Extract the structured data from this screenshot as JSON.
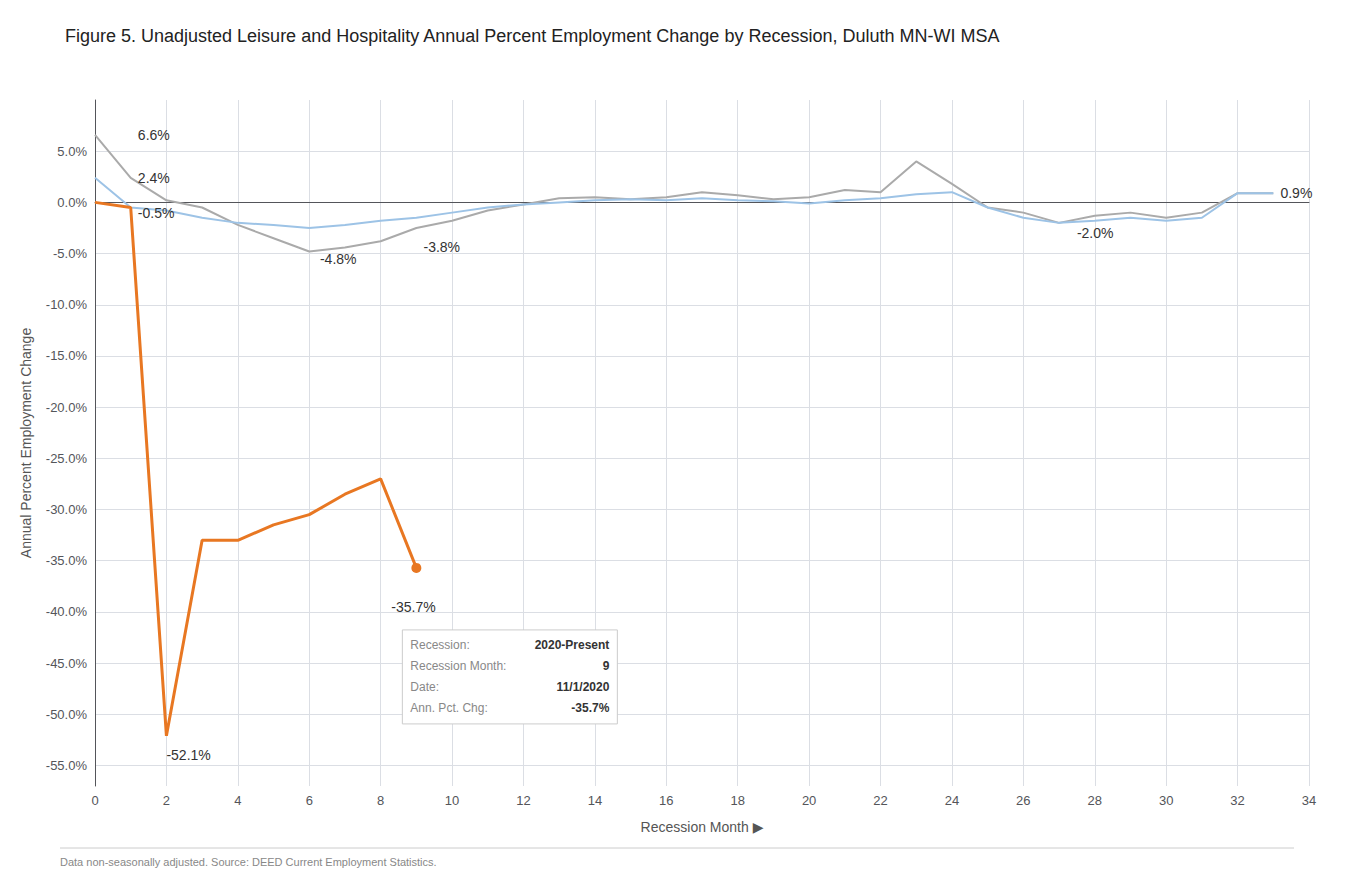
{
  "chart_data": {
    "type": "line",
    "title": "Figure 5. Unadjusted Leisure and Hospitality Annual Percent Employment Change by Recession, Duluth MN-WI MSA",
    "xlabel": "Recession Month ▶",
    "ylabel": "Annual Percent Employment Change",
    "footnote": "Data non-seasonally adjusted. Source: DEED Current Employment Statistics.",
    "grid": true,
    "xlim": [
      0,
      34
    ],
    "xticks": [
      0,
      2,
      4,
      6,
      8,
      10,
      12,
      14,
      16,
      18,
      20,
      22,
      24,
      26,
      28,
      30,
      32,
      34
    ],
    "ylim": [
      -0.57,
      0.1
    ],
    "yticks": [
      {
        "value": -0.55,
        "label": "-55.0%"
      },
      {
        "value": -0.5,
        "label": "-50.0%"
      },
      {
        "value": -0.45,
        "label": "-45.0%"
      },
      {
        "value": -0.4,
        "label": "-40.0%"
      },
      {
        "value": -0.35,
        "label": "-35.0%"
      },
      {
        "value": -0.3,
        "label": "-30.0%"
      },
      {
        "value": -0.25,
        "label": "-25.0%"
      },
      {
        "value": -0.2,
        "label": "-20.0%"
      },
      {
        "value": -0.15,
        "label": "-15.0%"
      },
      {
        "value": -0.1,
        "label": "-10.0%"
      },
      {
        "value": -0.05,
        "label": "-5.0%"
      },
      {
        "value": 0.0,
        "label": "0.0%"
      },
      {
        "value": 0.05,
        "label": "5.0%"
      }
    ],
    "series": [
      {
        "color": "#AAAAAA",
        "x": [
          0,
          1,
          2,
          3,
          4,
          5,
          6,
          7,
          8,
          9,
          10,
          11,
          12,
          13,
          14,
          15,
          16,
          17,
          18,
          19,
          20,
          21,
          22,
          23,
          24,
          25,
          26,
          27,
          28,
          29,
          30,
          31,
          32,
          33
        ],
        "values": [
          0.066,
          0.024,
          0.002,
          -0.005,
          -0.022,
          -0.035,
          -0.048,
          -0.044,
          -0.038,
          -0.025,
          -0.018,
          -0.008,
          -0.002,
          0.004,
          0.005,
          0.003,
          0.005,
          0.01,
          0.007,
          0.003,
          0.005,
          0.012,
          0.01,
          0.04,
          0.018,
          -0.005,
          -0.01,
          -0.02,
          -0.013,
          -0.01,
          -0.015,
          -0.01,
          0.009,
          0.009
        ]
      },
      {
        "color": "#9DC3E6",
        "x": [
          0,
          1,
          2,
          3,
          4,
          5,
          6,
          7,
          8,
          9,
          10,
          11,
          12,
          13,
          14,
          15,
          16,
          17,
          18,
          19,
          20,
          21,
          22,
          23,
          24,
          25,
          26,
          27,
          28,
          29,
          30,
          31,
          32,
          33
        ],
        "values": [
          0.024,
          -0.005,
          -0.008,
          -0.015,
          -0.02,
          -0.022,
          -0.025,
          -0.022,
          -0.018,
          -0.015,
          -0.01,
          -0.005,
          -0.002,
          0.0,
          0.002,
          0.003,
          0.002,
          0.004,
          0.002,
          0.001,
          -0.001,
          0.002,
          0.004,
          0.008,
          0.01,
          -0.005,
          -0.015,
          -0.02,
          -0.018,
          -0.015,
          -0.018,
          -0.015,
          0.009,
          0.009
        ]
      },
      {
        "color": "#E87722",
        "marker": "end",
        "x": [
          0,
          1,
          2,
          3,
          4,
          5,
          6,
          7,
          8,
          9
        ],
        "values": [
          0.0,
          -0.005,
          -0.521,
          -0.33,
          -0.33,
          -0.315,
          -0.305,
          -0.285,
          -0.27,
          -0.357
        ]
      }
    ],
    "annotations": [
      {
        "text": "6.6%",
        "x": 1.2,
        "y": 0.066
      },
      {
        "text": "2.4%",
        "x": 1.2,
        "y": 0.024
      },
      {
        "text": "-0.5%",
        "x": 1.2,
        "y": -0.01
      },
      {
        "text": "-4.8%",
        "x": 6.3,
        "y": -0.055
      },
      {
        "text": "-3.8%",
        "x": 9.2,
        "y": -0.044
      },
      {
        "text": "-35.7%",
        "x": 8.3,
        "y": -0.395
      },
      {
        "text": "-52.1%",
        "x": 2.0,
        "y": -0.54
      },
      {
        "text": "0.9%",
        "x": 33.2,
        "y": 0.009
      },
      {
        "text": "-2.0%",
        "x": 27.5,
        "y": -0.03
      }
    ],
    "callout": {
      "rows": [
        {
          "label": "Recession:",
          "value": "2020-Present"
        },
        {
          "label": "Recession Month:",
          "value": "9"
        },
        {
          "label": "Date:",
          "value": "11/1/2020"
        },
        {
          "label": "Ann. Pct. Chg:",
          "value": "-35.7%"
        }
      ]
    }
  }
}
